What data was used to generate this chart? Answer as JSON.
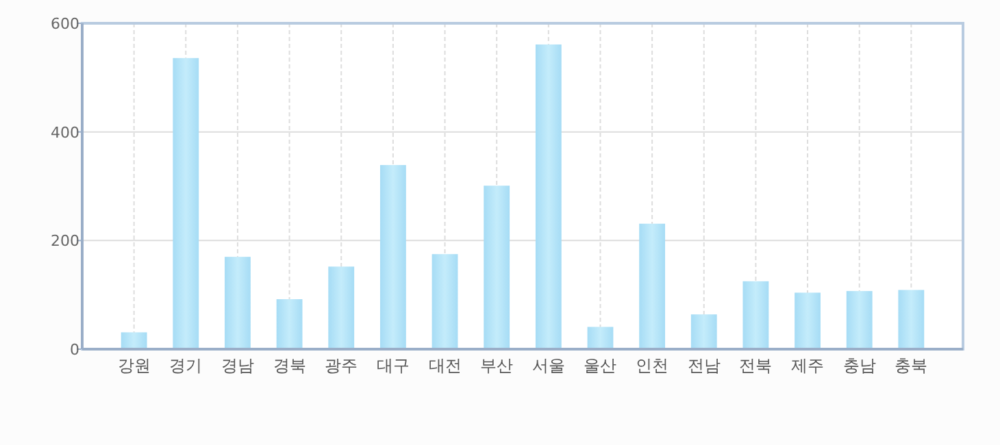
{
  "chart_data": {
    "type": "bar",
    "categories": [
      "강원",
      "경기",
      "경남",
      "경북",
      "광주",
      "대구",
      "대전",
      "부산",
      "서울",
      "울산",
      "인천",
      "전남",
      "전북",
      "제주",
      "충남",
      "충북"
    ],
    "values": [
      31,
      536,
      170,
      92,
      152,
      339,
      175,
      301,
      561,
      41,
      231,
      64,
      125,
      104,
      107,
      109
    ],
    "color": "#a6dcf5",
    "ylim": [
      0,
      600
    ],
    "yticks": [
      0,
      200,
      400,
      600
    ],
    "grid": true
  }
}
